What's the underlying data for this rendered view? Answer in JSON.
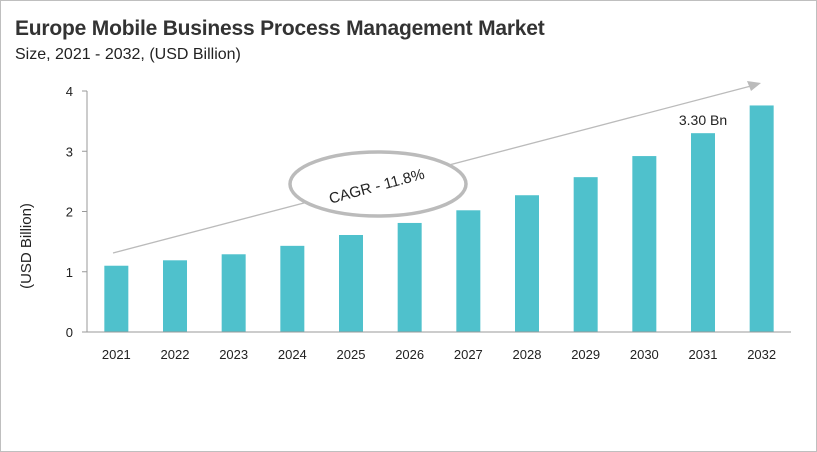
{
  "chart_data": {
    "type": "bar",
    "title": "Europe Mobile Business Process Management Market",
    "subtitle": "Size, 2021 - 2032, (USD Billion)",
    "xlabel": "",
    "ylabel": "(USD Billion)",
    "categories": [
      "2021",
      "2022",
      "2023",
      "2024",
      "2025",
      "2026",
      "2027",
      "2028",
      "2029",
      "2030",
      "2031",
      "2032"
    ],
    "values": [
      1.1,
      1.19,
      1.29,
      1.43,
      1.61,
      1.81,
      2.02,
      2.27,
      2.57,
      2.92,
      3.3,
      3.76
    ],
    "ylim": [
      0,
      4
    ],
    "yticks": [
      "0",
      "1",
      "2",
      "3",
      "4"
    ],
    "grid": false,
    "bar_color": "#4fc1cc",
    "annotations": {
      "cagr": "CAGR - 11.8%",
      "value_label": "3.30 Bn",
      "value_label_category": "2031"
    }
  }
}
